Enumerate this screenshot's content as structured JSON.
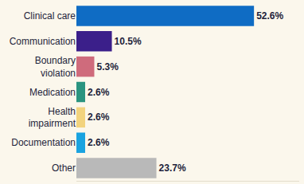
{
  "chart_data": {
    "type": "bar",
    "orientation": "horizontal",
    "categories": [
      "Clinical care",
      "Communication",
      "Boundary violation",
      "Medication",
      "Health impairment",
      "Documentation",
      "Other"
    ],
    "values": [
      52.6,
      10.5,
      5.3,
      2.6,
      2.6,
      2.6,
      23.7
    ],
    "value_labels": [
      "52.6%",
      "10.5%",
      "5.3%",
      "2.6%",
      "2.6%",
      "2.6%",
      "23.7%"
    ],
    "colors": [
      "#0f6cc4",
      "#3b1f8a",
      "#cf6b7c",
      "#2a9480",
      "#f2d37e",
      "#1aa3e0",
      "#b9b9b9"
    ],
    "data_labels": true,
    "tick_labels": "y",
    "grid": false,
    "xlim": [
      0,
      66
    ],
    "xticks": []
  }
}
